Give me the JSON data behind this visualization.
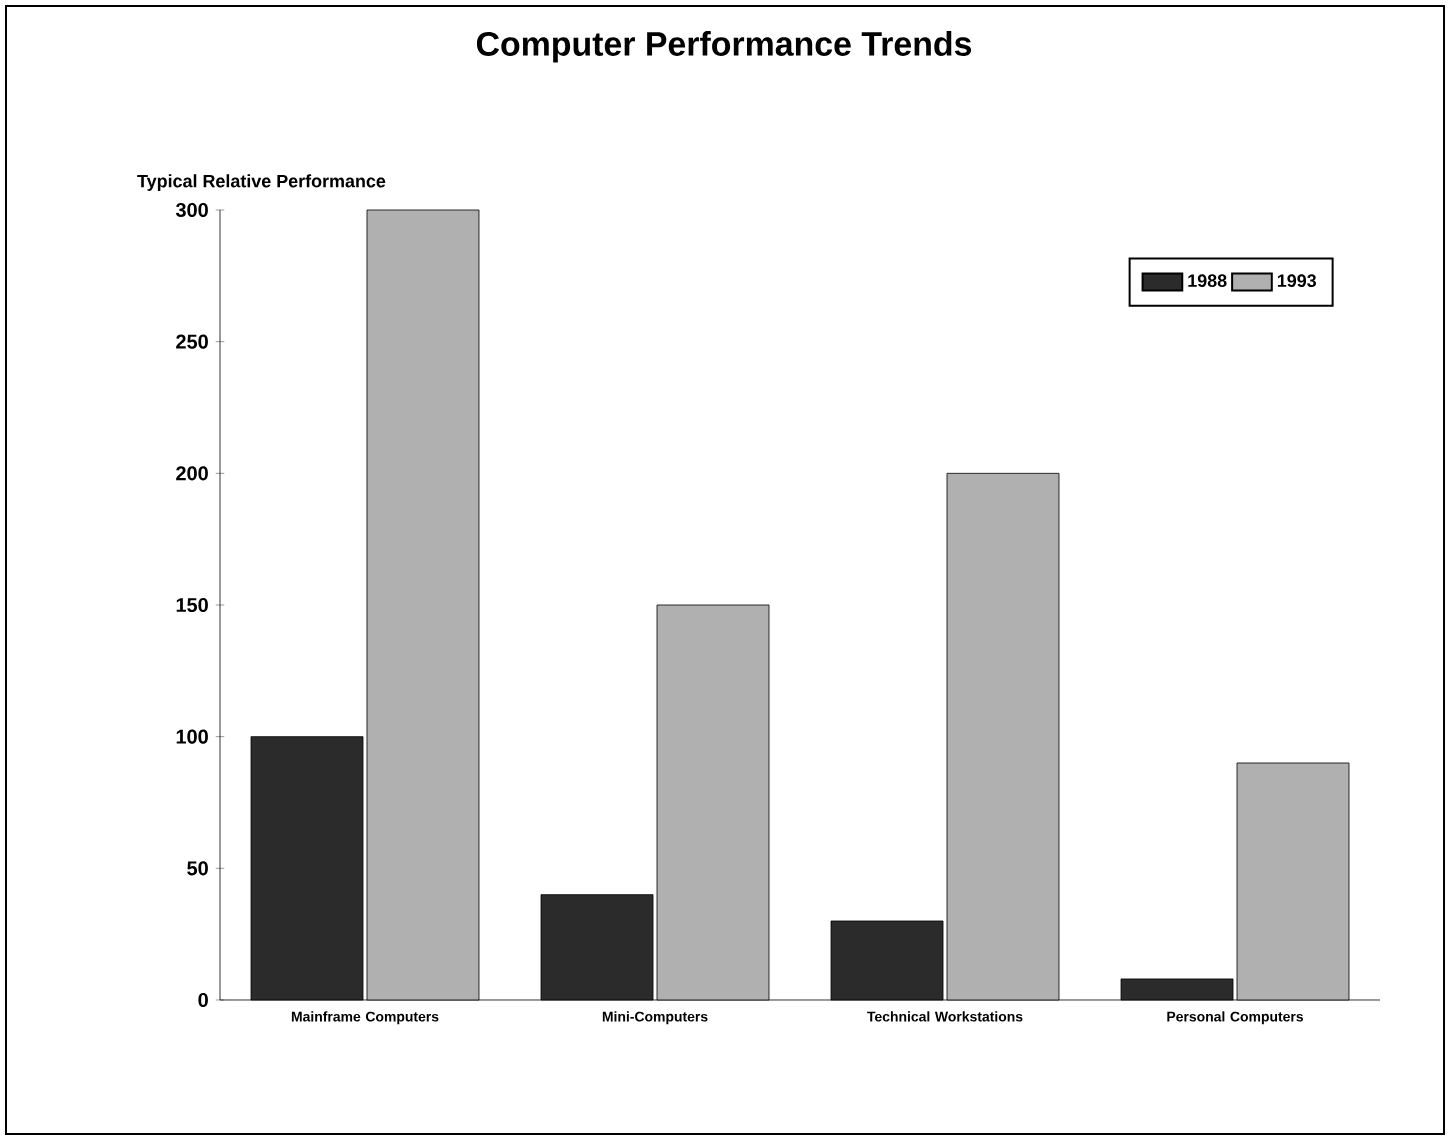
{
  "chart_data": {
    "type": "bar",
    "title": "Computer Performance Trends",
    "ylabel": "Typical Relative Performance",
    "categories": [
      "Mainframe Computers",
      "Mini-Computers",
      "Technical Workstations",
      "Personal Computers"
    ],
    "series": [
      {
        "name": "1988",
        "color": "#2b2b2b",
        "values": [
          100,
          40,
          30,
          8
        ]
      },
      {
        "name": "1993",
        "color": "#b0b0b0",
        "values": [
          300,
          150,
          200,
          90
        ]
      }
    ],
    "ylim": [
      0,
      300
    ],
    "yticks": [
      0,
      50,
      100,
      150,
      200,
      250,
      300
    ],
    "legend": "top right"
  }
}
